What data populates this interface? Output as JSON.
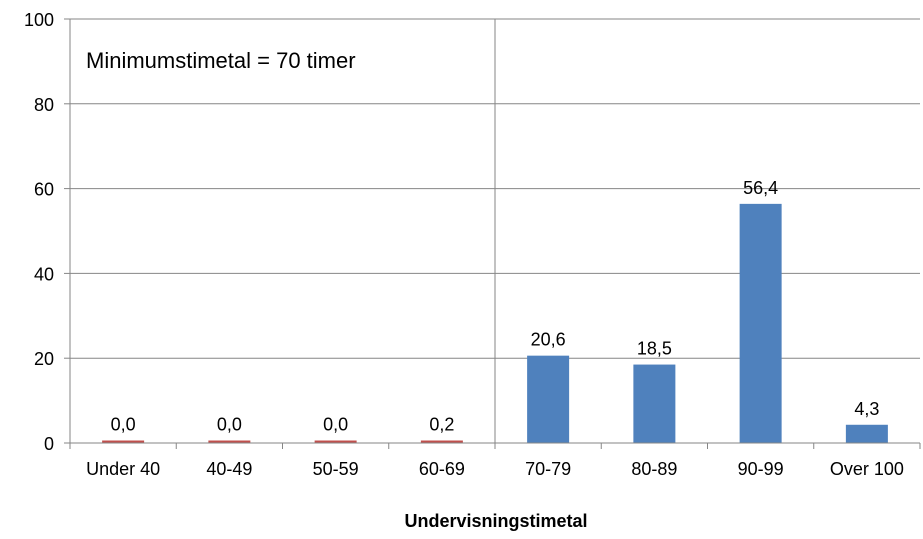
{
  "chart_data": {
    "type": "bar",
    "title": "",
    "annotation": "Minimumstimetal = 70 timer",
    "xlabel": "Undervisningstimetal",
    "ylabel": "",
    "ylim": [
      0,
      100
    ],
    "yticks": [
      0,
      20,
      40,
      60,
      80,
      100
    ],
    "grid": true,
    "legend": "none",
    "categories": [
      "Under 40",
      "40-49",
      "50-59",
      "60-69",
      "70-79",
      "80-89",
      "90-99",
      "Over 100"
    ],
    "values": [
      0.0,
      0.0,
      0.0,
      0.2,
      20.6,
      18.5,
      56.4,
      4.3
    ],
    "value_labels": [
      "0,0",
      "0,0",
      "0,0",
      "0,2",
      "20,6",
      "18,5",
      "56,4",
      "4,3"
    ],
    "bar_colors": [
      "#c0504d",
      "#c0504d",
      "#c0504d",
      "#c0504d",
      "#4f81bd",
      "#4f81bd",
      "#4f81bd",
      "#4f81bd"
    ],
    "threshold_category_index": 4
  }
}
